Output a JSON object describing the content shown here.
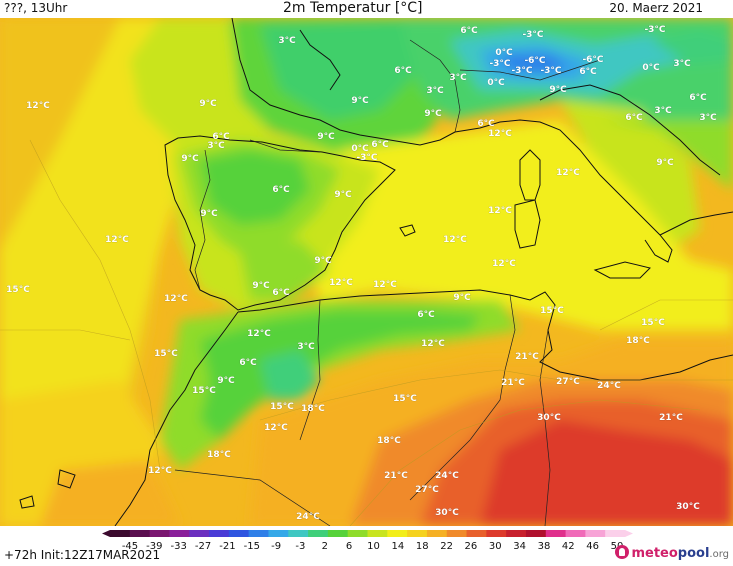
{
  "header": {
    "run_label": "???, 13Uhr",
    "title": "2m Temperatur [°C]",
    "date": "20. Maerz 2021"
  },
  "footer": {
    "forecast_info": "+72h Init:12Z17MAR2021",
    "logo_main": "meteo",
    "logo_accent": "pool",
    "logo_tld": ".org"
  },
  "legend": {
    "ticks": [
      "-45",
      "-39",
      "-33",
      "-27",
      "-21",
      "-15",
      "-9",
      "-3",
      "2",
      "6",
      "10",
      "14",
      "18",
      "22",
      "26",
      "30",
      "34",
      "38",
      "42",
      "46",
      "50"
    ],
    "colors": [
      "#3b0a2e",
      "#5a0f4f",
      "#7a1670",
      "#8a1f9a",
      "#6b2fbf",
      "#4a3bd6",
      "#2f55e0",
      "#2f7fe8",
      "#35a8e8",
      "#3fc7c2",
      "#3fcf7a",
      "#56d23a",
      "#8fdc2a",
      "#c8e41f",
      "#f2ee1a",
      "#f5d21e",
      "#f5b024",
      "#f08a2a",
      "#e8602c",
      "#dd3a2c",
      "#c8202e",
      "#b0102e",
      "#e02f8c",
      "#f06ab8",
      "#f7a3d6",
      "#fbd0ea"
    ]
  },
  "map_labels": [
    {
      "text": "3°C"
    },
    {
      "text": "6°C"
    },
    {
      "text": "-3°C"
    },
    {
      "text": "-3°C"
    },
    {
      "text": "0°C"
    },
    {
      "text": "-3°C"
    },
    {
      "text": "-6°C"
    },
    {
      "text": "-6°C"
    },
    {
      "text": "3°C"
    },
    {
      "text": "-3°C"
    },
    {
      "text": "-3°C"
    },
    {
      "text": "0°C"
    },
    {
      "text": "6°C"
    },
    {
      "text": "3°C"
    },
    {
      "text": "0°C"
    },
    {
      "text": "6°C"
    },
    {
      "text": "3°C"
    },
    {
      "text": "9°C"
    },
    {
      "text": "9°C"
    },
    {
      "text": "3°C"
    },
    {
      "text": "6°C"
    },
    {
      "text": "12°C"
    },
    {
      "text": "9°C"
    },
    {
      "text": "9°C"
    },
    {
      "text": "6°C"
    },
    {
      "text": "3°C"
    },
    {
      "text": "12°C"
    },
    {
      "text": "0°C"
    },
    {
      "text": "-3°C"
    },
    {
      "text": "6°C"
    },
    {
      "text": "9°C"
    },
    {
      "text": "6°C"
    },
    {
      "text": "6°C"
    },
    {
      "text": "9°C"
    },
    {
      "text": "12°C"
    },
    {
      "text": "12°C"
    },
    {
      "text": "9°C"
    },
    {
      "text": "9°C"
    },
    {
      "text": "12°C"
    },
    {
      "text": "6°C"
    },
    {
      "text": "9°C"
    },
    {
      "text": "3°C"
    },
    {
      "text": "12°C"
    },
    {
      "text": "12°C"
    },
    {
      "text": "12°C"
    },
    {
      "text": "12°C"
    },
    {
      "text": "9°C"
    },
    {
      "text": "15°C"
    },
    {
      "text": "15°C"
    },
    {
      "text": "12°C"
    },
    {
      "text": "9°C"
    },
    {
      "text": "6°C"
    },
    {
      "text": "12°C"
    },
    {
      "text": "15°C"
    },
    {
      "text": "18°C"
    },
    {
      "text": "9°C"
    },
    {
      "text": "6°C"
    },
    {
      "text": "12°C"
    },
    {
      "text": "15°C"
    },
    {
      "text": "3°C"
    },
    {
      "text": "6°C"
    },
    {
      "text": "9°C"
    },
    {
      "text": "15°C"
    },
    {
      "text": "15°C"
    },
    {
      "text": "15°C"
    },
    {
      "text": "18°C"
    },
    {
      "text": "21°C"
    },
    {
      "text": "18°C"
    },
    {
      "text": "21°C"
    },
    {
      "text": "27°C"
    },
    {
      "text": "24°C"
    },
    {
      "text": "30°C"
    },
    {
      "text": "21°C"
    },
    {
      "text": "12°C"
    },
    {
      "text": "21°C"
    },
    {
      "text": "24°C"
    },
    {
      "text": "27°C"
    },
    {
      "text": "18°C"
    },
    {
      "text": "24°C"
    },
    {
      "text": "30°C"
    },
    {
      "text": "30°C"
    },
    {
      "text": "12°C"
    }
  ]
}
